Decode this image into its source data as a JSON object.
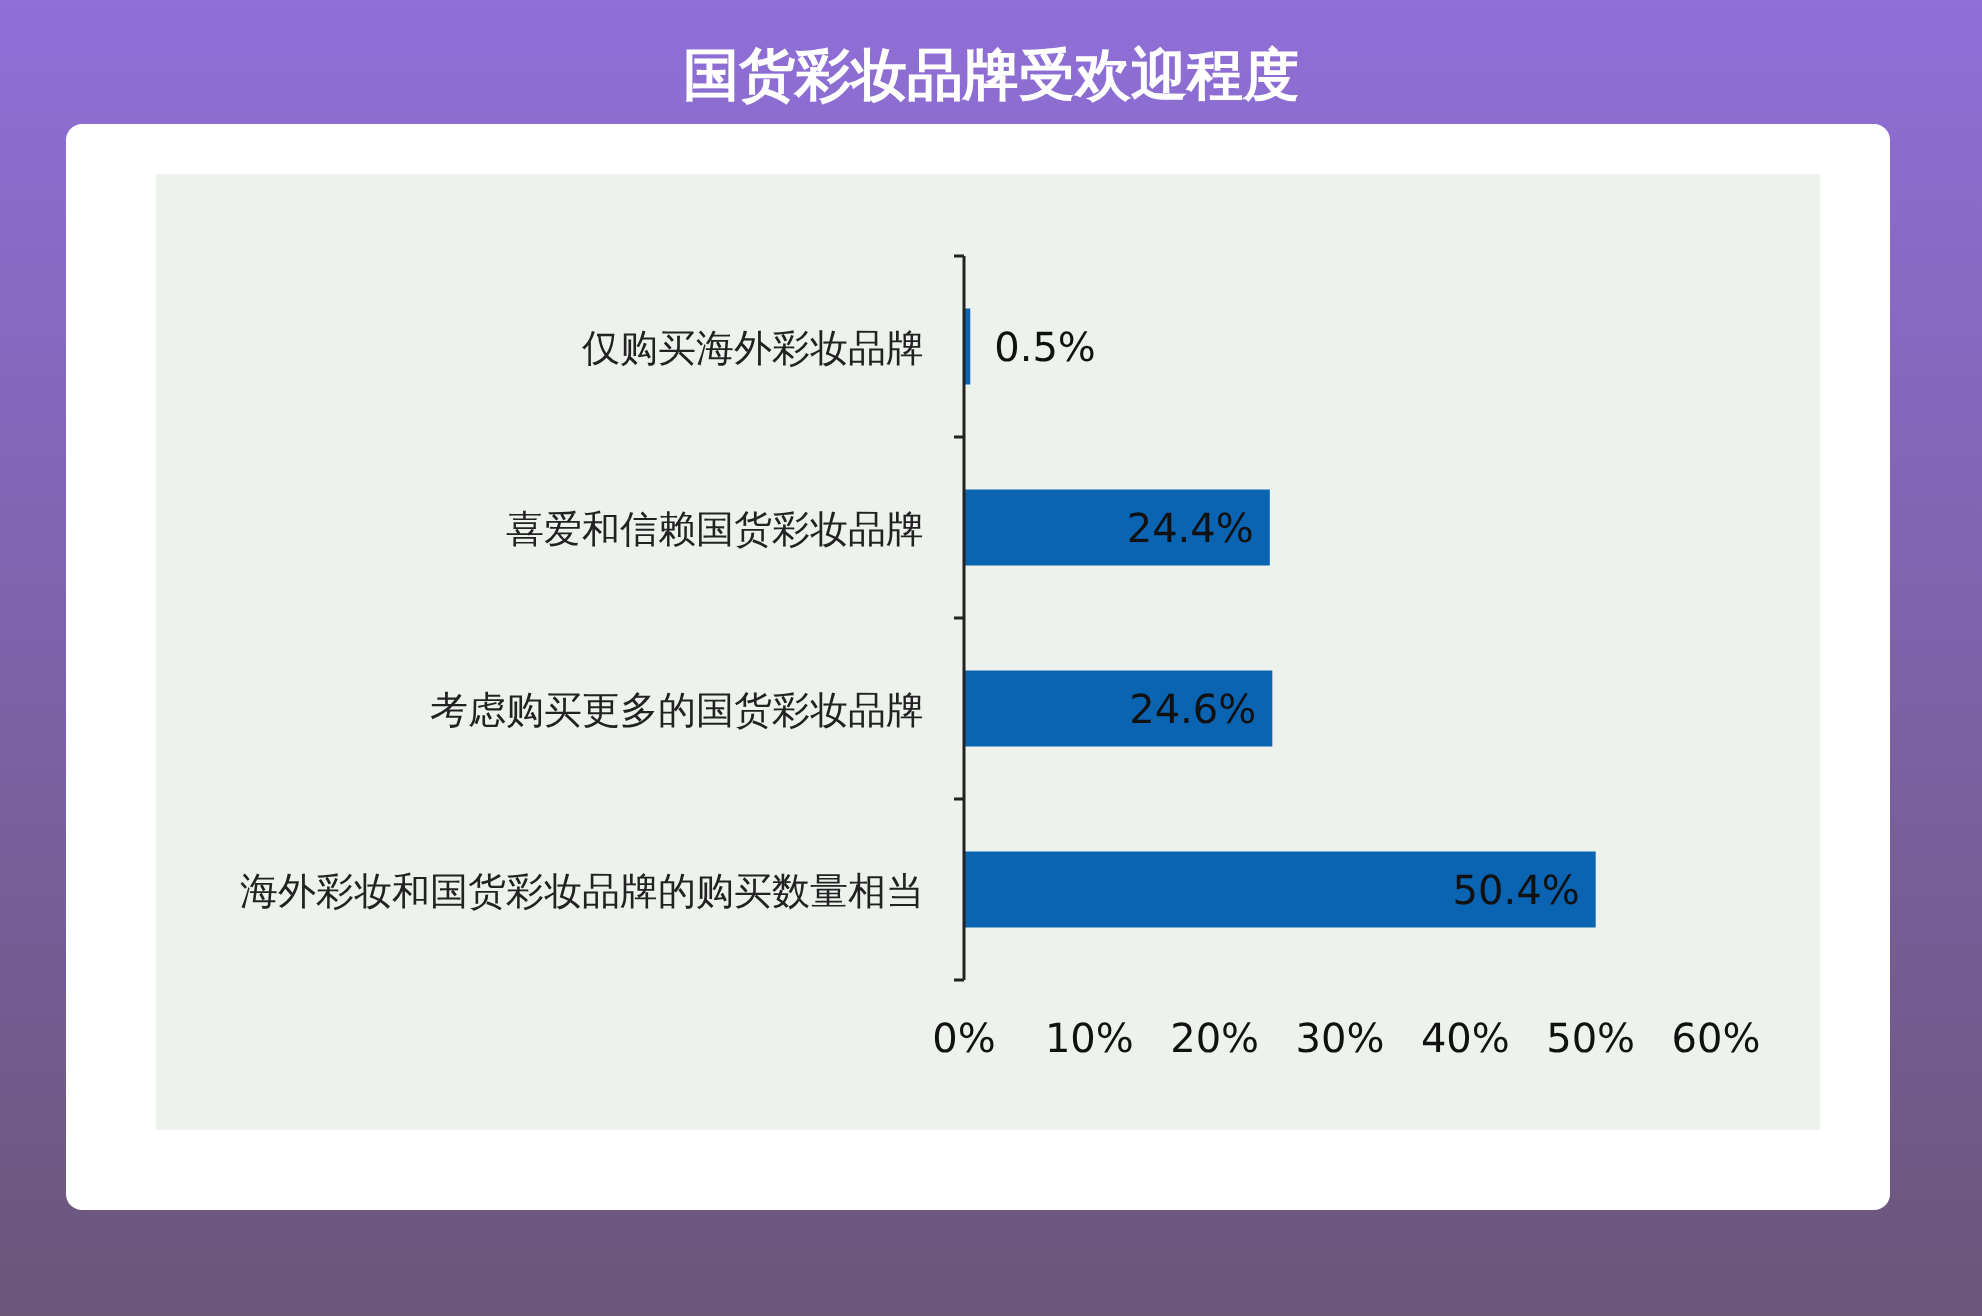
{
  "chart_data": {
    "type": "bar",
    "orientation": "horizontal",
    "title": "国货彩妆品牌受欢迎程度",
    "categories": [
      "仅购买海外彩妆品牌",
      "喜爱和信赖国货彩妆品牌",
      "考虑购买更多的国货彩妆品牌",
      "海外彩妆和国货彩妆品牌的购买数量相当"
    ],
    "values": [
      0.5,
      24.4,
      24.6,
      50.4
    ],
    "value_labels": [
      "0.5%",
      "24.4%",
      "24.6%",
      "50.4%"
    ],
    "color": "#0b64b2",
    "xlim": [
      0,
      60
    ],
    "xticks": [
      {
        "value": 0,
        "label": "0%"
      },
      {
        "value": 10,
        "label": "10%"
      },
      {
        "value": 20,
        "label": "20%"
      },
      {
        "value": 30,
        "label": "30%"
      },
      {
        "value": 40,
        "label": "40%"
      },
      {
        "value": 50,
        "label": "50%"
      },
      {
        "value": 60,
        "label": "60%"
      }
    ]
  }
}
